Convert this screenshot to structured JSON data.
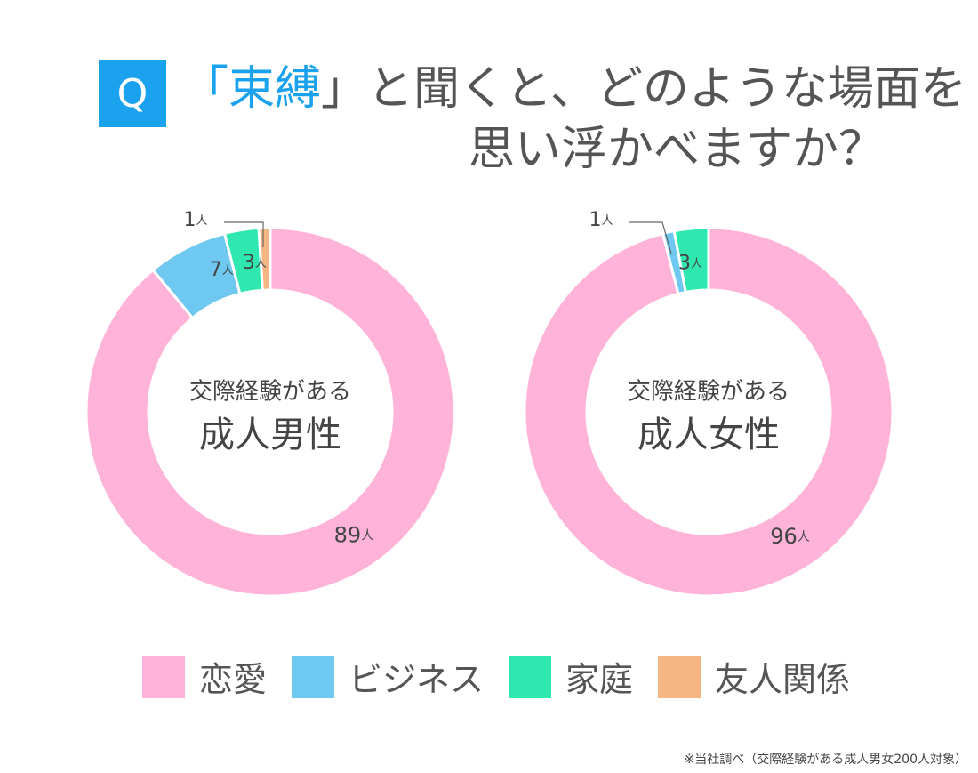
{
  "question": {
    "badge": "Q",
    "title_open_bracket": "「",
    "title_keyword": "束縛",
    "title_line1_rest": "」と聞くと、どのような場面を",
    "title_line2": "思い浮かべますか？"
  },
  "chart_data": [
    {
      "type": "pie",
      "center_label_top": "交際経験がある",
      "center_label_main": "成人男性",
      "unit": "人",
      "slices": [
        {
          "category": "恋愛",
          "value": 89
        },
        {
          "category": "ビジネス",
          "value": 7
        },
        {
          "category": "家庭",
          "value": 3
        },
        {
          "category": "友人関係",
          "value": 1
        }
      ]
    },
    {
      "type": "pie",
      "center_label_top": "交際経験がある",
      "center_label_main": "成人女性",
      "unit": "人",
      "slices": [
        {
          "category": "恋愛",
          "value": 96
        },
        {
          "category": "ビジネス",
          "value": 1
        },
        {
          "category": "家庭",
          "value": 3
        },
        {
          "category": "友人関係",
          "value": 0
        }
      ]
    }
  ],
  "legend": [
    {
      "label": "恋愛",
      "color": "#ffb3d8"
    },
    {
      "label": "ビジネス",
      "color": "#6ec8ef"
    },
    {
      "label": "家庭",
      "color": "#2ee8b0"
    },
    {
      "label": "友人関係",
      "color": "#f5b684"
    }
  ],
  "footnote": "※当社調べ（交際経験がある成人男女200人対象）"
}
